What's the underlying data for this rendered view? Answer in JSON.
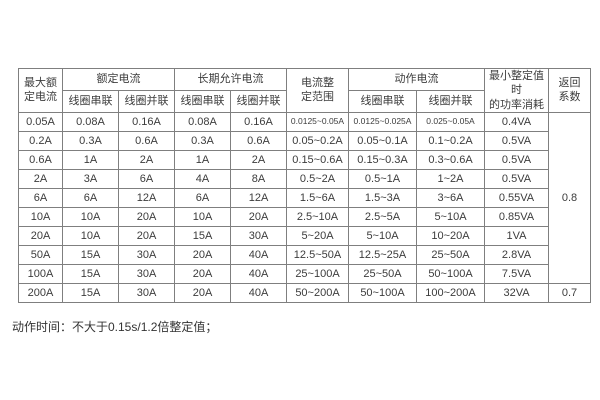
{
  "table": {
    "header": {
      "col_max_rated": "最大额\n定电流",
      "group_rated": "额定电流",
      "group_longterm": "长期允许电流",
      "col_setting_range": "电流整\n定范围",
      "group_operating": "动作电流",
      "col_power": "最小整定值时\n的功率消耗",
      "col_return": "返回\n系数",
      "sub_coil_series": "线圈串联",
      "sub_coil_parallel": "线圈并联"
    },
    "rows": [
      [
        "0.05A",
        "0.08A",
        "0.16A",
        "0.08A",
        "0.16A",
        "0.0125~0.05A",
        "0.0125~0.025A",
        "0.025~0.05A",
        "0.4VA"
      ],
      [
        "0.2A",
        "0.3A",
        "0.6A",
        "0.3A",
        "0.6A",
        "0.05~0.2A",
        "0.05~0.1A",
        "0.1~0.2A",
        "0.5VA"
      ],
      [
        "0.6A",
        "1A",
        "2A",
        "1A",
        "2A",
        "0.15~0.6A",
        "0.15~0.3A",
        "0.3~0.6A",
        "0.5VA"
      ],
      [
        "2A",
        "3A",
        "6A",
        "4A",
        "8A",
        "0.5~2A",
        "0.5~1A",
        "1~2A",
        "0.5VA"
      ],
      [
        "6A",
        "6A",
        "12A",
        "6A",
        "12A",
        "1.5~6A",
        "1.5~3A",
        "3~6A",
        "0.55VA"
      ],
      [
        "10A",
        "10A",
        "20A",
        "10A",
        "20A",
        "2.5~10A",
        "2.5~5A",
        "5~10A",
        "0.85VA"
      ],
      [
        "20A",
        "10A",
        "20A",
        "15A",
        "30A",
        "5~20A",
        "5~10A",
        "10~20A",
        "1VA"
      ],
      [
        "50A",
        "15A",
        "30A",
        "20A",
        "40A",
        "12.5~50A",
        "12.5~25A",
        "25~50A",
        "2.8VA"
      ],
      [
        "100A",
        "15A",
        "30A",
        "20A",
        "40A",
        "25~100A",
        "25~50A",
        "50~100A",
        "7.5VA"
      ],
      [
        "200A",
        "15A",
        "30A",
        "20A",
        "40A",
        "50~200A",
        "50~100A",
        "100~200A",
        "32VA"
      ]
    ],
    "return_coeff": {
      "merged_value": "0.8",
      "merged_rows": 9,
      "last_value": "0.7"
    }
  },
  "note": "动作时间：不大于0.15s/1.2倍整定值；",
  "colors": {
    "border": "#7f7f7f",
    "text": "#3c3c3c",
    "background": "#ffffff"
  }
}
